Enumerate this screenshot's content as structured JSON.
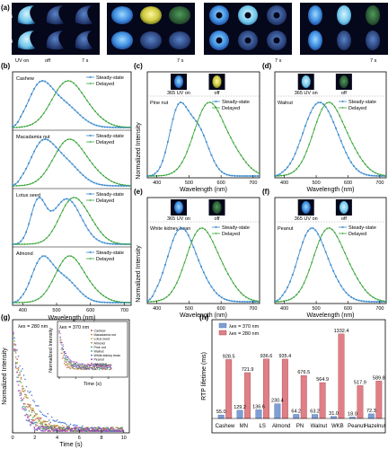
{
  "panel_labels": [
    "(a)",
    "(b)",
    "(c)",
    "(d)",
    "(e)",
    "(f)",
    "(g)",
    "(h)"
  ],
  "photo_captions": {
    "rows": [
      "365",
      "254"
    ],
    "uv_on": "UV on",
    "off": "off",
    "delay": "7 s"
  },
  "legend": {
    "steady": "Steady-state",
    "delayed": "Delayed"
  },
  "colors": {
    "steady": "#3d8ccf",
    "delayed": "#3aa63a",
    "bar_365": "#7e9fd6",
    "bar_280": "#e07f86"
  },
  "axis_labels": {
    "normalized_intensity": "Normalized Intensity",
    "wavelength": "Wavelength (nm)",
    "time": "Time (s)",
    "rtp_lifetime": "RTP lifetime (ms)"
  },
  "ticks_wavelength_b": [
    "400",
    "500",
    "600",
    "700"
  ],
  "ticks_wavelength": [
    "400",
    "500",
    "600",
    "700"
  ],
  "ticks_time_g": [
    "0",
    "2",
    "4",
    "6",
    "8",
    "10"
  ],
  "ticks_time_inset": [
    "0",
    "1",
    "2",
    "3"
  ],
  "photo_labels_cdef": {
    "uv": "365 UV on",
    "off": "off"
  },
  "b_stack": {
    "samples": [
      "Cashew",
      "Macadamia nut",
      "Lotus seed",
      "Almond"
    ]
  },
  "spectra": {
    "c": {
      "name": "Pine nut"
    },
    "d": {
      "name": "Walnut"
    },
    "e": {
      "name": "White kidney bean"
    },
    "f": {
      "name": "Peanut"
    }
  },
  "g": {
    "main_label": "λex = 280 nm",
    "inset_label": "λex = 370 nm",
    "inset_legend": [
      "Cashew",
      "Macadamia nut",
      "Lotus seed",
      "Almond",
      "Pine nut",
      "Walnut",
      "White kidney bean",
      "Peanut",
      "Hazelnut"
    ],
    "inset_colors": [
      "#b03030",
      "#d07030",
      "#c8a030",
      "#8a9a30",
      "#3a9a5a",
      "#2a9a9a",
      "#3a6ad0",
      "#7a3ad0",
      "#c03aa0"
    ]
  },
  "chart_data": {
    "type": "bar",
    "categories": [
      "Cashew",
      "MN",
      "LS",
      "Almond",
      "PN",
      "Walnut",
      "WKB",
      "Peanut",
      "Hazelnut"
    ],
    "series": [
      {
        "name": "λex = 370 nm",
        "values": [
          55.0,
          129.2,
          136.6,
          230.4,
          64.2,
          63.2,
          31.0,
          18.0,
          72.3
        ]
      },
      {
        "name": "λex = 280 nm",
        "values": [
          928.5,
          721.9,
          936.6,
          935.4,
          676.5,
          564.9,
          1332.4,
          517.9,
          589.8
        ]
      }
    ],
    "value_labels_370": [
      "55.0",
      "129.2",
      "136.6",
      "230.4",
      "64.2",
      "63.2",
      "31.0",
      "18.0",
      "72.3"
    ],
    "value_labels_280": [
      "928.5",
      "721.9",
      "936.6",
      "935.4",
      "676.5",
      "564.9",
      "1332.4",
      "517.9",
      "589.8"
    ],
    "ylabel": "RTP lifetime (ms)",
    "ylim": [
      0,
      1500
    ]
  }
}
